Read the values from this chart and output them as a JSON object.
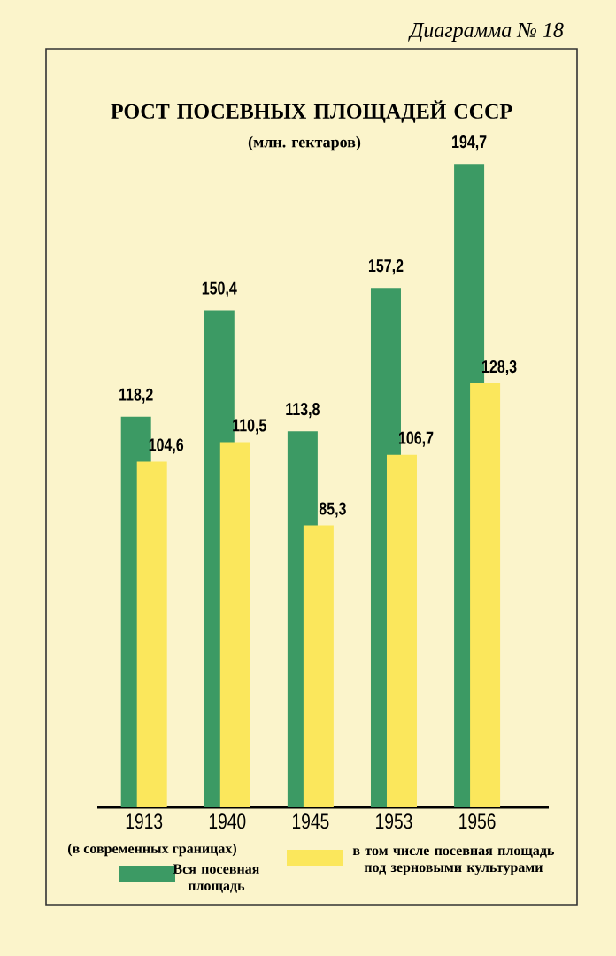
{
  "chart_data": {
    "type": "bar",
    "title": "РОСТ ПОСЕВНЫХ ПЛОЩАДЕЙ СССР",
    "subtitle": "(млн. гектаров)",
    "categories": [
      "1913",
      "1940",
      "1945",
      "1953",
      "1956"
    ],
    "series": [
      {
        "name": "Вся посевная площадь",
        "color": "#3c9a64",
        "values": [
          118.2,
          150.4,
          113.8,
          157.2,
          194.7
        ],
        "value_labels": [
          "118,2",
          "150,4",
          "113,8",
          "157,2",
          "194,7"
        ]
      },
      {
        "name": "в том числе посевная площадь под зерновыми культурами",
        "color": "#fbe75c",
        "values": [
          104.6,
          110.5,
          85.3,
          106.7,
          128.3
        ],
        "value_labels": [
          "104,6",
          "110,5",
          "85,3",
          "106,7",
          "128,3"
        ]
      }
    ],
    "tick_labels": "x",
    "legend": "bottom",
    "grid": false,
    "annotations": [
      "Диаграмма № 18",
      "(в современных границах)"
    ]
  }
}
